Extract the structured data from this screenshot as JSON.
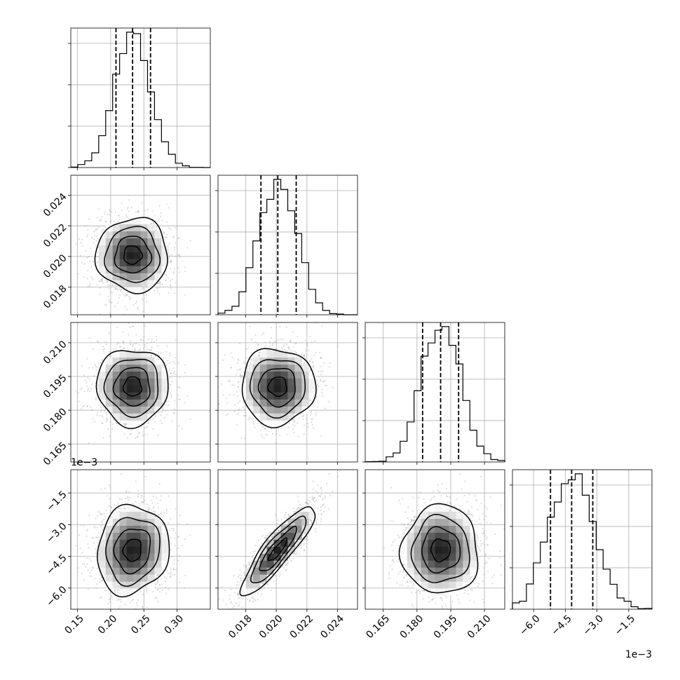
{
  "chart_data": {
    "type": "corner",
    "grid": true,
    "parameters": [
      {
        "index": 0,
        "range": [
          0.14,
          0.35
        ],
        "ticks": [
          0.15,
          0.2,
          0.25,
          0.3
        ],
        "tick_labels": [
          "0.15",
          "0.20",
          "0.25",
          "0.30"
        ],
        "multiplier": "",
        "mean": 0.233,
        "sd": 0.027,
        "quantiles": [
          0.208,
          0.233,
          0.26
        ]
      },
      {
        "index": 1,
        "range": [
          0.0162,
          0.0253
        ],
        "ticks": [
          0.018,
          0.02,
          0.022,
          0.024
        ],
        "tick_labels": [
          "0.018",
          "0.020",
          "0.022",
          "0.024"
        ],
        "multiplier": "",
        "mean": 0.0201,
        "sd": 0.0012,
        "quantiles": [
          0.019,
          0.0201,
          0.0213
        ]
      },
      {
        "index": 2,
        "range": [
          0.157,
          0.219
        ],
        "ticks": [
          0.165,
          0.18,
          0.195,
          0.21
        ],
        "tick_labels": [
          "0.165",
          "0.180",
          "0.195",
          "0.210"
        ],
        "multiplier": "",
        "mean": 0.1905,
        "sd": 0.0085,
        "quantiles": [
          0.1825,
          0.1905,
          0.1985
        ]
      },
      {
        "index": 3,
        "range": [
          -7.0,
          -0.4
        ],
        "ticks": [
          -6.0,
          -4.5,
          -3.0,
          -1.5
        ],
        "tick_labels": [
          "−6.0",
          "−4.5",
          "−3.0",
          "−1.5"
        ],
        "multiplier": "1e−3",
        "mean": -4.2,
        "sd": 1.05,
        "quantiles": [
          -5.2,
          -4.2,
          -3.2
        ]
      }
    ],
    "correlations": [
      [
        1,
        0,
        0,
        0.1
      ],
      [
        0,
        1,
        0,
        0.88
      ],
      [
        0,
        0,
        1,
        0.05
      ],
      [
        0.1,
        0.88,
        0.05,
        1
      ]
    ],
    "histogram_bins": 20,
    "contour_levels": [
      0.118,
      0.393,
      0.675,
      0.865
    ]
  }
}
